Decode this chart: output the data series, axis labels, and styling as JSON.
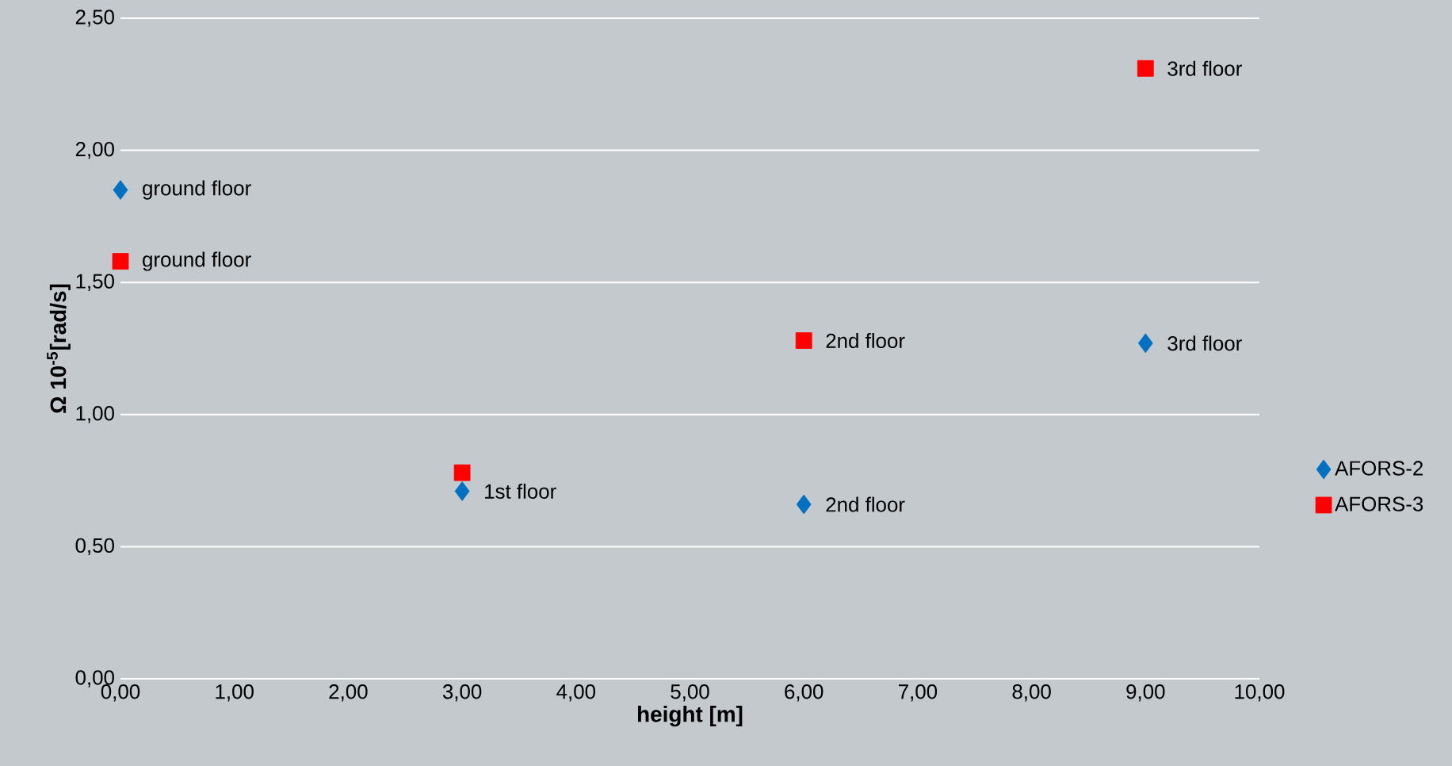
{
  "chart_data": {
    "type": "scatter",
    "xlabel": "height [m]",
    "ylabel": "Ω  10$^{-5}$[rad/s]",
    "xlim": [
      0,
      10
    ],
    "ylim": [
      0,
      2.5
    ],
    "xticks": [
      {
        "value": 0,
        "label": "0,00"
      },
      {
        "value": 1,
        "label": "1,00"
      },
      {
        "value": 2,
        "label": "2,00"
      },
      {
        "value": 3,
        "label": "3,00"
      },
      {
        "value": 4,
        "label": "4,00"
      },
      {
        "value": 5,
        "label": "5,00"
      },
      {
        "value": 6,
        "label": "6,00"
      },
      {
        "value": 7,
        "label": "7,00"
      },
      {
        "value": 8,
        "label": "8,00"
      },
      {
        "value": 9,
        "label": "9,00"
      },
      {
        "value": 10,
        "label": "10,00"
      }
    ],
    "yticks": [
      {
        "value": 0,
        "label": "0,00"
      },
      {
        "value": 0.5,
        "label": "0,50"
      },
      {
        "value": 1,
        "label": "1,00"
      },
      {
        "value": 1.5,
        "label": "1,50"
      },
      {
        "value": 2,
        "label": "2,00"
      },
      {
        "value": 2.5,
        "label": "2,50"
      }
    ],
    "grid": "y",
    "legend": "right",
    "x": [
      0,
      3,
      6,
      9
    ],
    "series": [
      {
        "name": "AFORS-2",
        "color": "#0070c0",
        "marker": "diamond",
        "values": [
          1.85,
          0.71,
          0.66,
          1.27
        ]
      },
      {
        "name": "AFORS-3",
        "color": "#ff0000",
        "marker": "square",
        "values": [
          1.58,
          0.78,
          1.28,
          2.31
        ]
      }
    ],
    "annotations": [
      {
        "text": "ground floor",
        "x": 0,
        "y": 1.85
      },
      {
        "text": "1st floor",
        "x": 3,
        "y": 0.71
      },
      {
        "text": "2nd floor",
        "x": 6,
        "y": 0.66
      },
      {
        "text": "3rd floor",
        "x": 9,
        "y": 1.27
      },
      {
        "text": "ground floor",
        "x": 0,
        "y": 1.58
      },
      {
        "text": "2nd floor",
        "x": 6,
        "y": 1.28
      },
      {
        "text": "3rd floor",
        "x": 9,
        "y": 2.31
      }
    ]
  }
}
